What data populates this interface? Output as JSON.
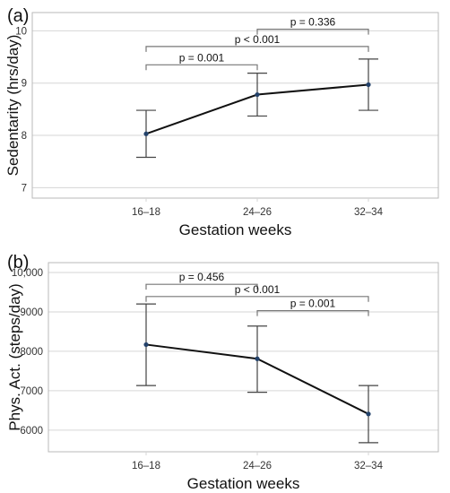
{
  "chart_data": [
    {
      "type": "line",
      "panel_label": "(a)",
      "categories": [
        "16–18",
        "24–26",
        "32–34"
      ],
      "series": [
        {
          "values": [
            8.03,
            8.78,
            8.97
          ],
          "error_low": [
            7.58,
            8.37,
            8.48
          ],
          "error_high": [
            8.48,
            9.19,
            9.46
          ]
        }
      ],
      "xlabel": "Gestation weeks",
      "ylabel": "Sedentarity (hrs/day)",
      "ylim": [
        6.8,
        10.35
      ],
      "yticks": [
        7,
        8,
        9,
        10
      ],
      "ytick_labels": [
        "7",
        "8",
        "9",
        "10"
      ],
      "grid": true,
      "annotations": [
        {
          "from": 0,
          "to": 1,
          "level": 9.35,
          "text": "p = 0.001"
        },
        {
          "from": 0,
          "to": 2,
          "level": 9.7,
          "text": "p < 0.001"
        },
        {
          "from": 1,
          "to": 2,
          "level": 10.03,
          "text": "p = 0.336"
        }
      ]
    },
    {
      "type": "line",
      "panel_label": "(b)",
      "categories": [
        "16–18",
        "24–26",
        "32–34"
      ],
      "series": [
        {
          "values": [
            8170,
            7810,
            6410
          ],
          "error_low": [
            7130,
            6960,
            5680
          ],
          "error_high": [
            9200,
            8640,
            7130
          ]
        }
      ],
      "xlabel": "Gestation weeks",
      "ylabel": "Phys. Act. (steps/day)",
      "ylim": [
        5450,
        10250
      ],
      "yticks": [
        6000,
        7000,
        8000,
        9000,
        10000
      ],
      "ytick_labels": [
        "6000",
        "7000",
        "8000",
        "9000",
        "10,000"
      ],
      "grid": true,
      "annotations": [
        {
          "from": 0,
          "to": 1,
          "level": 9700,
          "text": "p = 0.456"
        },
        {
          "from": 0,
          "to": 2,
          "level": 9390,
          "text": "p < 0.001"
        },
        {
          "from": 1,
          "to": 2,
          "level": 9030,
          "text": "p = 0.001"
        }
      ]
    }
  ]
}
